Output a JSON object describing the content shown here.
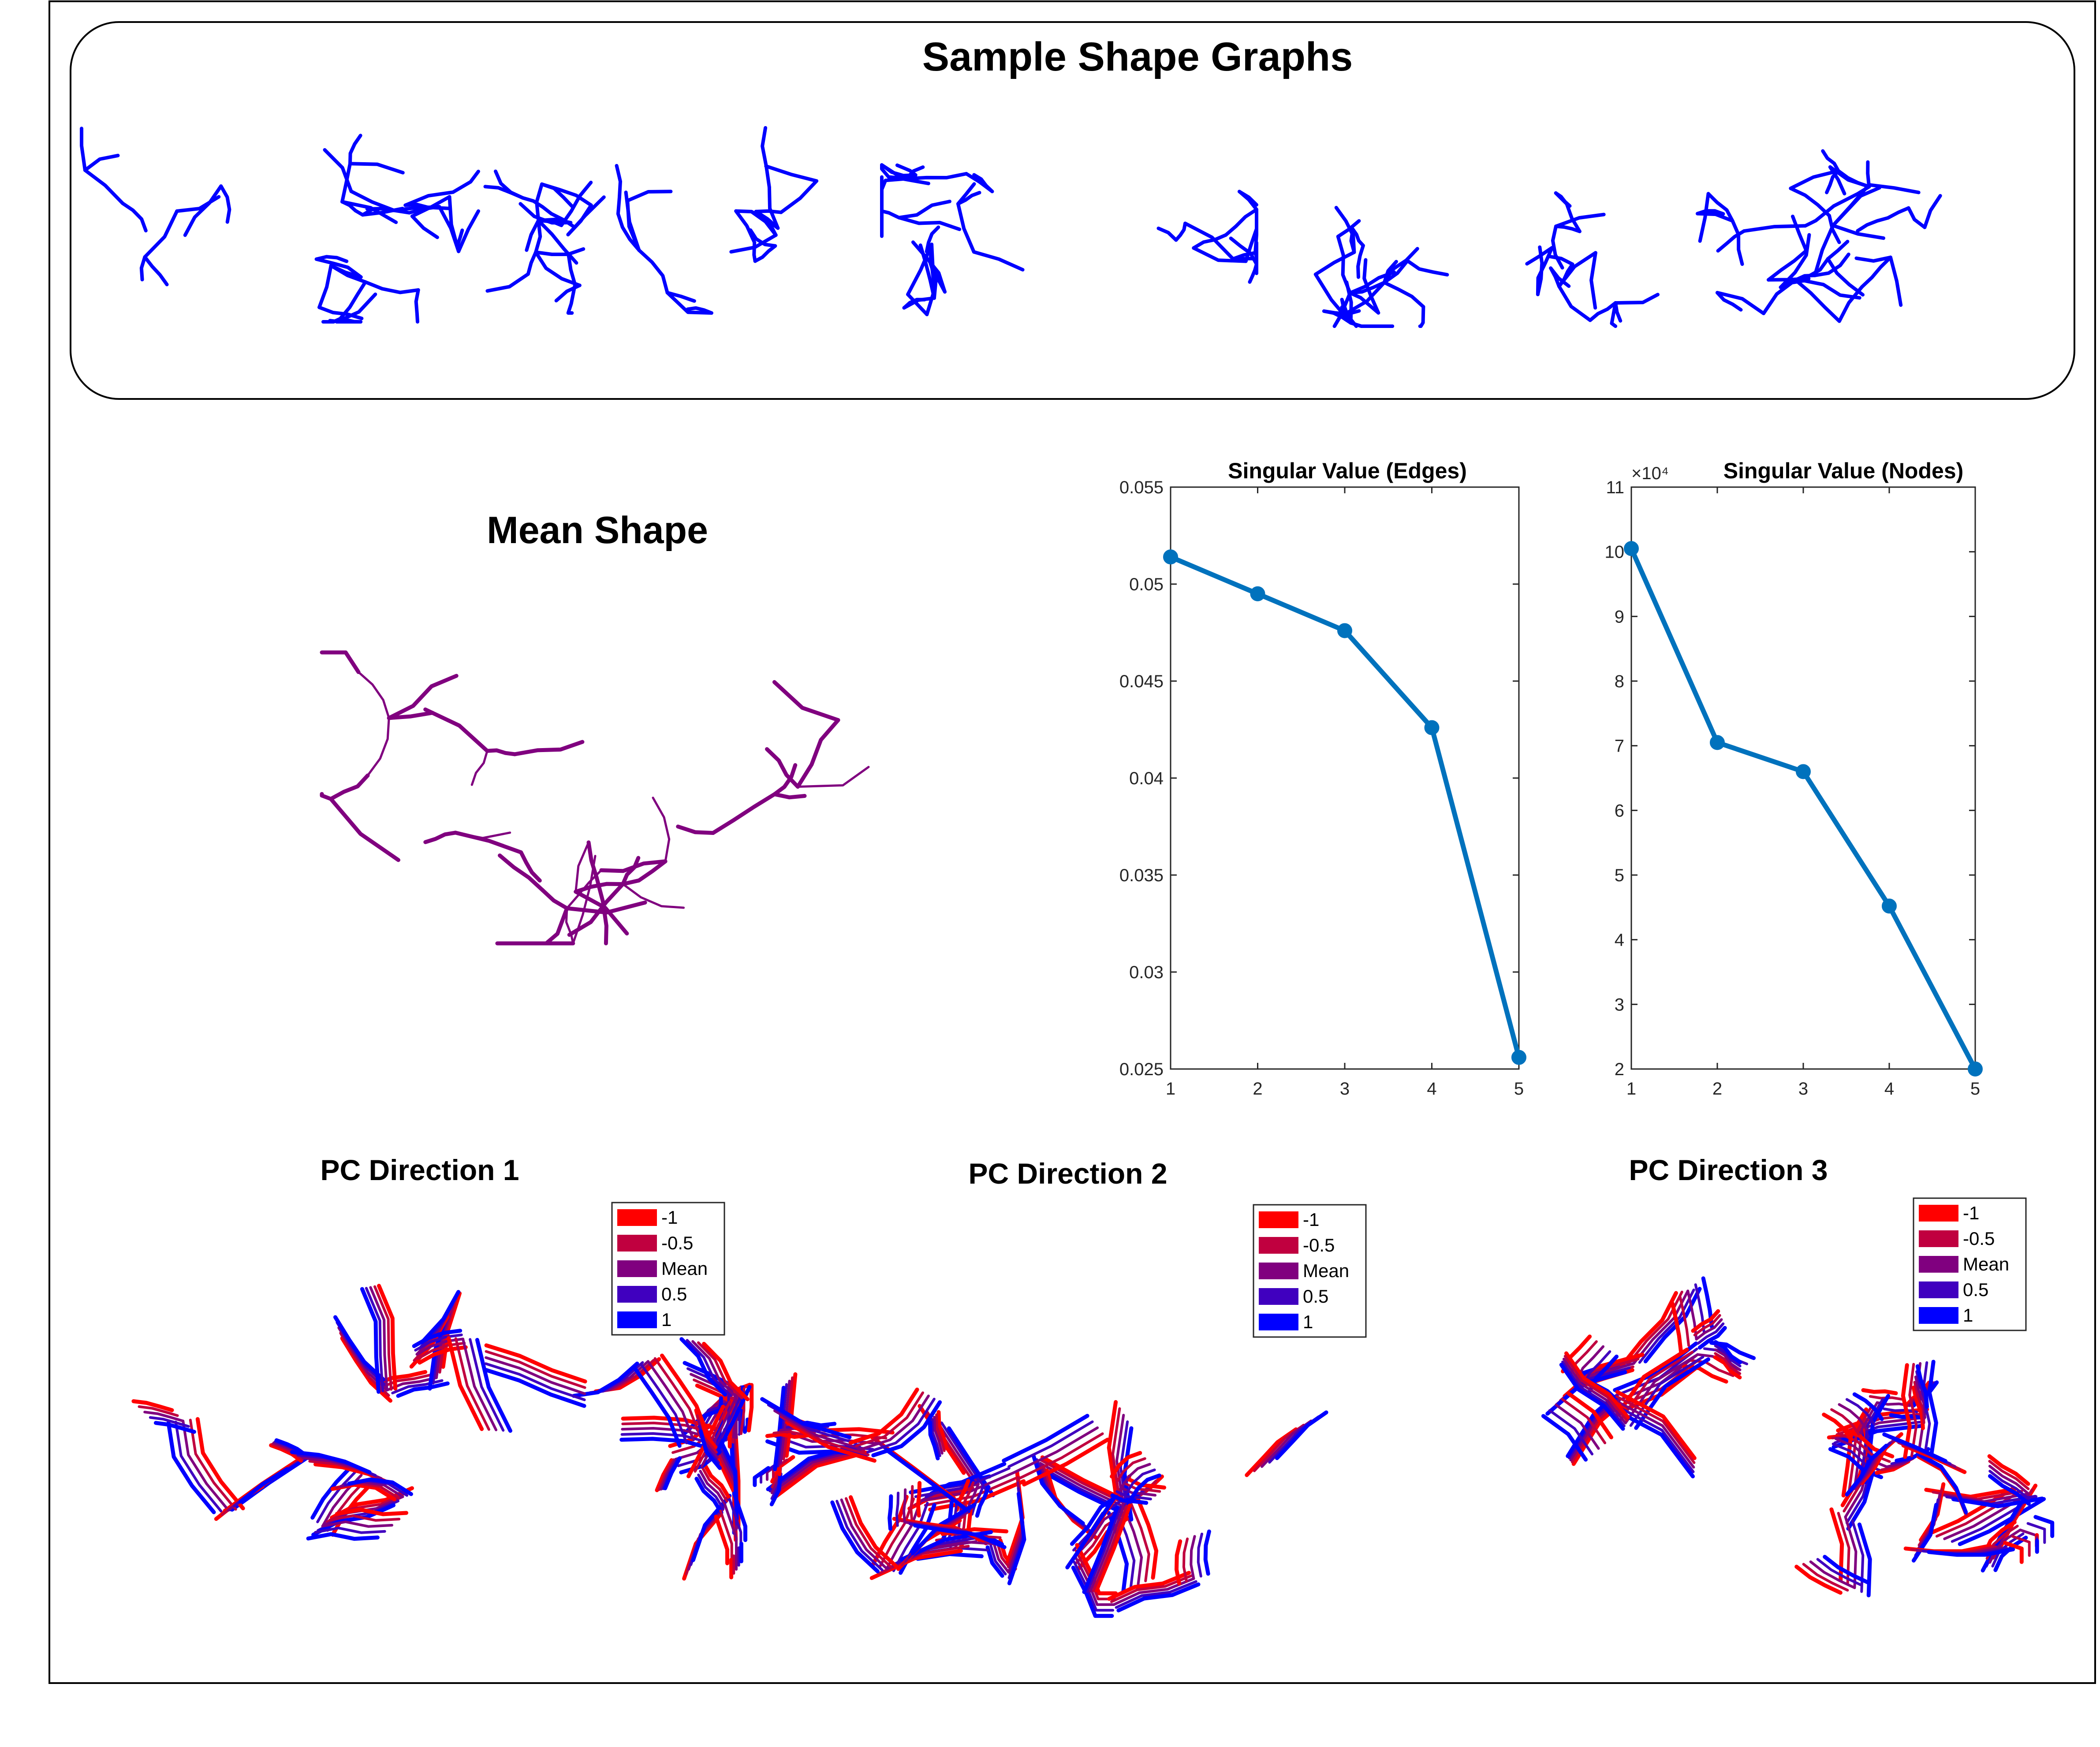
{
  "panels": {
    "samples_title": "Sample Shape Graphs",
    "mean_title": "Mean Shape",
    "pc_titles": [
      "PC Direction 1",
      "PC Direction 2",
      "PC Direction 3"
    ]
  },
  "legend": {
    "entries": [
      {
        "label": "-1",
        "color": "#ff0000"
      },
      {
        "label": "-0.5",
        "color": "#c0003f"
      },
      {
        "label": "Mean",
        "color": "#80007f"
      },
      {
        "label": "0.5",
        "color": "#4000bf"
      },
      {
        "label": "1",
        "color": "#0000ff"
      }
    ]
  },
  "colors": {
    "sample_graph": "#0000ff",
    "mean_graph": "#80007f",
    "line": "#0072bd"
  },
  "chart_data": [
    {
      "type": "line",
      "title": "Singular Value (Edges)",
      "x": [
        1,
        2,
        3,
        4,
        5
      ],
      "y": [
        0.0514,
        0.0495,
        0.0476,
        0.0426,
        0.0256
      ],
      "xlim": [
        1,
        5
      ],
      "ylim": [
        0.025,
        0.055
      ],
      "xticks": [
        "1",
        "2",
        "3",
        "4",
        "5"
      ],
      "yticks": [
        "0.025",
        "0.03",
        "0.035",
        "0.04",
        "0.045",
        "0.05",
        "0.055"
      ],
      "multiplier": ""
    },
    {
      "type": "line",
      "title": "Singular Value (Nodes)",
      "x": [
        1,
        2,
        3,
        4,
        5
      ],
      "y": [
        10.05,
        7.05,
        6.6,
        4.52,
        2.0
      ],
      "xlim": [
        1,
        5
      ],
      "ylim": [
        2,
        11
      ],
      "xticks": [
        "1",
        "2",
        "3",
        "4",
        "5"
      ],
      "yticks": [
        "2",
        "3",
        "4",
        "5",
        "6",
        "7",
        "8",
        "9",
        "10",
        "11"
      ],
      "multiplier": "×10⁴"
    }
  ]
}
